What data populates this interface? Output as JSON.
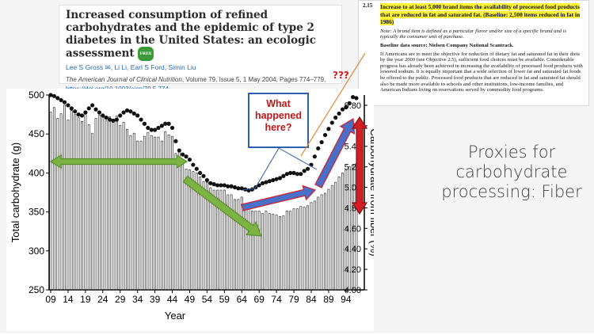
{
  "reference": {
    "title": "Increased consumption of refined carbohydrates and the epidemic of type 2 diabetes in the United States: an ecologic assessment",
    "free_badge": "FREE",
    "authors": "Lee S Gross ✉, Li Li, Earl S Ford, Simin Liu",
    "journal": "The American Journal of Clinical Nutrition",
    "journal_rest": ", Volume 79, Issue 5, 1 May 2004, Pages 774–779,",
    "doi": "https://doi.org/10.1093/ajcn/79.5.774"
  },
  "objective": {
    "number": "2.15",
    "highlight": "Increase to at least 5,000 brand items the availability of processed food products that are reduced in fat and saturated fat.  (Baseline:  2,500 items reduced in fat in 1986)",
    "note": "Note:  A brand item is defined as a particular flavor and/or size of a specific brand and is typically the consumer unit of purchase.",
    "baseline_source": "Baseline data source:  Nielsen Company National Scantrack.",
    "body": "If Americans are to meet the objective for reduction of dietary fat and saturated fat in their diets by the year 2000 (see Objective 2.5), sufficient food choices must be available. Considerable progress has already been achieved in increasing the availability of processed food products with lowered sodium.  It is equally important that a wide selection of lower fat and saturated fat foods be offered to the public.  Processed food products that are reduced in fat and saturated fat should also be made more available to schools and other institutions, low-income families, and American Indians living on reservations served by commodity food programs."
  },
  "annotations": {
    "question_marks": "???",
    "callout": "What happened here?"
  },
  "side_text": "Proxies for carbohydrate processing: Fiber",
  "colors": {
    "bars": "#333333",
    "dots": "#111111",
    "arrow_green": "#7cb342",
    "arrow_blue": "#4a6fc9",
    "arrow_red": "#d21f26",
    "callout_border": "#2f5fa8",
    "highlight": "#fff236"
  },
  "chart_data": {
    "type": "bar",
    "title": "",
    "xlabel": "Year",
    "ylabel_left": "Total carbohydrate (g)",
    "ylabel_right": "Carbohydrate from fiber (%)",
    "left_ylim": [
      250,
      500
    ],
    "left_ticks": [
      250,
      300,
      350,
      400,
      450,
      500
    ],
    "right_ylim": [
      4.0,
      5.9
    ],
    "right_ticks": [
      "4.00",
      "4.20",
      "4.40",
      "4.60",
      "4.80",
      "5.00",
      "5.20",
      "5.40",
      "5.60",
      "5.80"
    ],
    "x_tick_labels": [
      "09",
      "14",
      "19",
      "24",
      "29",
      "34",
      "39",
      "44",
      "49",
      "54",
      "59",
      "64",
      "69",
      "74",
      "79",
      "84",
      "89",
      "94"
    ],
    "years": [
      1909,
      1910,
      1911,
      1912,
      1913,
      1914,
      1915,
      1916,
      1917,
      1918,
      1919,
      1920,
      1921,
      1922,
      1923,
      1924,
      1925,
      1926,
      1927,
      1928,
      1929,
      1930,
      1931,
      1932,
      1933,
      1934,
      1935,
      1936,
      1937,
      1938,
      1939,
      1940,
      1941,
      1942,
      1943,
      1944,
      1945,
      1946,
      1947,
      1948,
      1949,
      1950,
      1951,
      1952,
      1953,
      1954,
      1955,
      1956,
      1957,
      1958,
      1959,
      1960,
      1961,
      1962,
      1963,
      1964,
      1965,
      1966,
      1967,
      1968,
      1969,
      1970,
      1971,
      1972,
      1973,
      1974,
      1975,
      1976,
      1977,
      1978,
      1979,
      1980,
      1981,
      1982,
      1983,
      1984,
      1985,
      1986,
      1987,
      1988,
      1989,
      1990,
      1991,
      1992,
      1993,
      1994,
      1995,
      1996,
      1997
    ],
    "series": [
      {
        "name": "Total carbohydrate (g)",
        "axis": "left",
        "kind": "bar",
        "values": [
          478,
          484,
          470,
          476,
          487,
          468,
          480,
          475,
          471,
          466,
          478,
          462,
          451,
          470,
          474,
          474,
          467,
          472,
          468,
          473,
          461,
          465,
          456,
          448,
          451,
          441,
          441,
          447,
          452,
          448,
          446,
          446,
          441,
          453,
          449,
          447,
          425,
          430,
          415,
          405,
          404,
          402,
          400,
          395,
          389,
          388,
          381,
          378,
          378,
          378,
          378,
          372,
          372,
          366,
          366,
          369,
          358,
          356,
          351,
          351,
          351,
          348,
          351,
          348,
          347,
          346,
          344,
          345,
          351,
          351,
          354,
          354,
          357,
          356,
          358,
          362,
          364,
          369,
          372,
          374,
          379,
          384,
          388,
          395,
          400,
          404,
          408,
          410,
          412
        ]
      },
      {
        "name": "Carbohydrate from fiber (%)",
        "axis": "right",
        "kind": "dots",
        "values": [
          5.9,
          5.89,
          5.87,
          5.85,
          5.83,
          5.8,
          5.77,
          5.74,
          5.71,
          5.7,
          5.73,
          5.77,
          5.8,
          5.76,
          5.73,
          5.7,
          5.68,
          5.66,
          5.65,
          5.66,
          5.7,
          5.73,
          5.75,
          5.74,
          5.72,
          5.7,
          5.66,
          5.62,
          5.58,
          5.56,
          5.56,
          5.58,
          5.6,
          5.62,
          5.62,
          5.58,
          5.45,
          5.36,
          5.32,
          5.3,
          5.27,
          5.22,
          5.18,
          5.14,
          5.11,
          5.07,
          5.04,
          5.03,
          5.02,
          5.02,
          5.02,
          5.01,
          5.01,
          5.0,
          4.99,
          4.99,
          4.98,
          4.97,
          4.98,
          5.0,
          5.02,
          5.04,
          5.05,
          5.06,
          5.07,
          5.08,
          5.09,
          5.11,
          5.13,
          5.14,
          5.14,
          5.13,
          5.13,
          5.16,
          5.18,
          5.22,
          5.3,
          5.38,
          5.44,
          5.51,
          5.57,
          5.63,
          5.68,
          5.72,
          5.76,
          5.78,
          5.82,
          5.88,
          5.87
        ]
      }
    ],
    "grid": false,
    "legend": "none"
  }
}
